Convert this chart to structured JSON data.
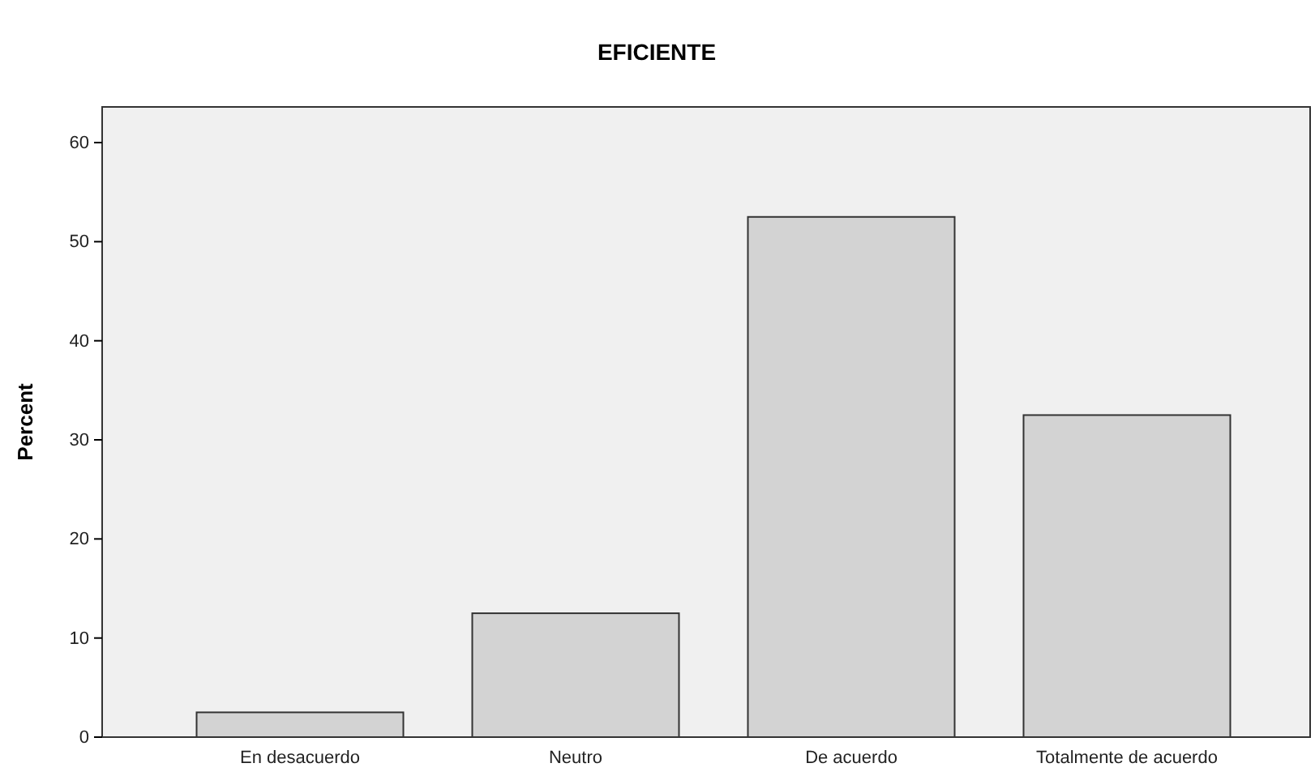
{
  "chart_data": {
    "type": "bar",
    "title": "EFICIENTE",
    "ylabel": "Percent",
    "categories": [
      "En desacuerdo",
      "Neutro",
      "De acuerdo",
      "Totalmente de acuerdo"
    ],
    "values": [
      2.5,
      12.5,
      52.5,
      32.5
    ],
    "color": "#d3d3d3",
    "ylim": [
      0,
      63.6
    ],
    "yticks": [
      0,
      10,
      20,
      30,
      40,
      50,
      60
    ],
    "grid": false
  }
}
